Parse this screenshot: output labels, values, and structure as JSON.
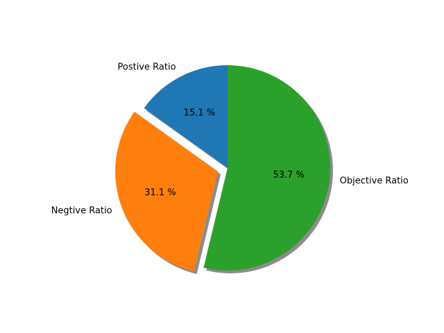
{
  "chart_data": {
    "type": "pie",
    "title": "",
    "labels": [
      "Postive Ratio",
      "Negtive Ratio",
      "Objective Ratio"
    ],
    "values": [
      15.1,
      31.1,
      53.7
    ],
    "percent_labels": [
      "15.1 %",
      "31.1 %",
      "53.7 %"
    ],
    "colors": [
      "#1f77b4",
      "#ff7f0e",
      "#2ca02c"
    ],
    "explode": [
      0,
      0.1,
      0
    ],
    "start_angle_deg": 90,
    "direction": "counterclockwise",
    "shadow": true,
    "legend": "none"
  }
}
